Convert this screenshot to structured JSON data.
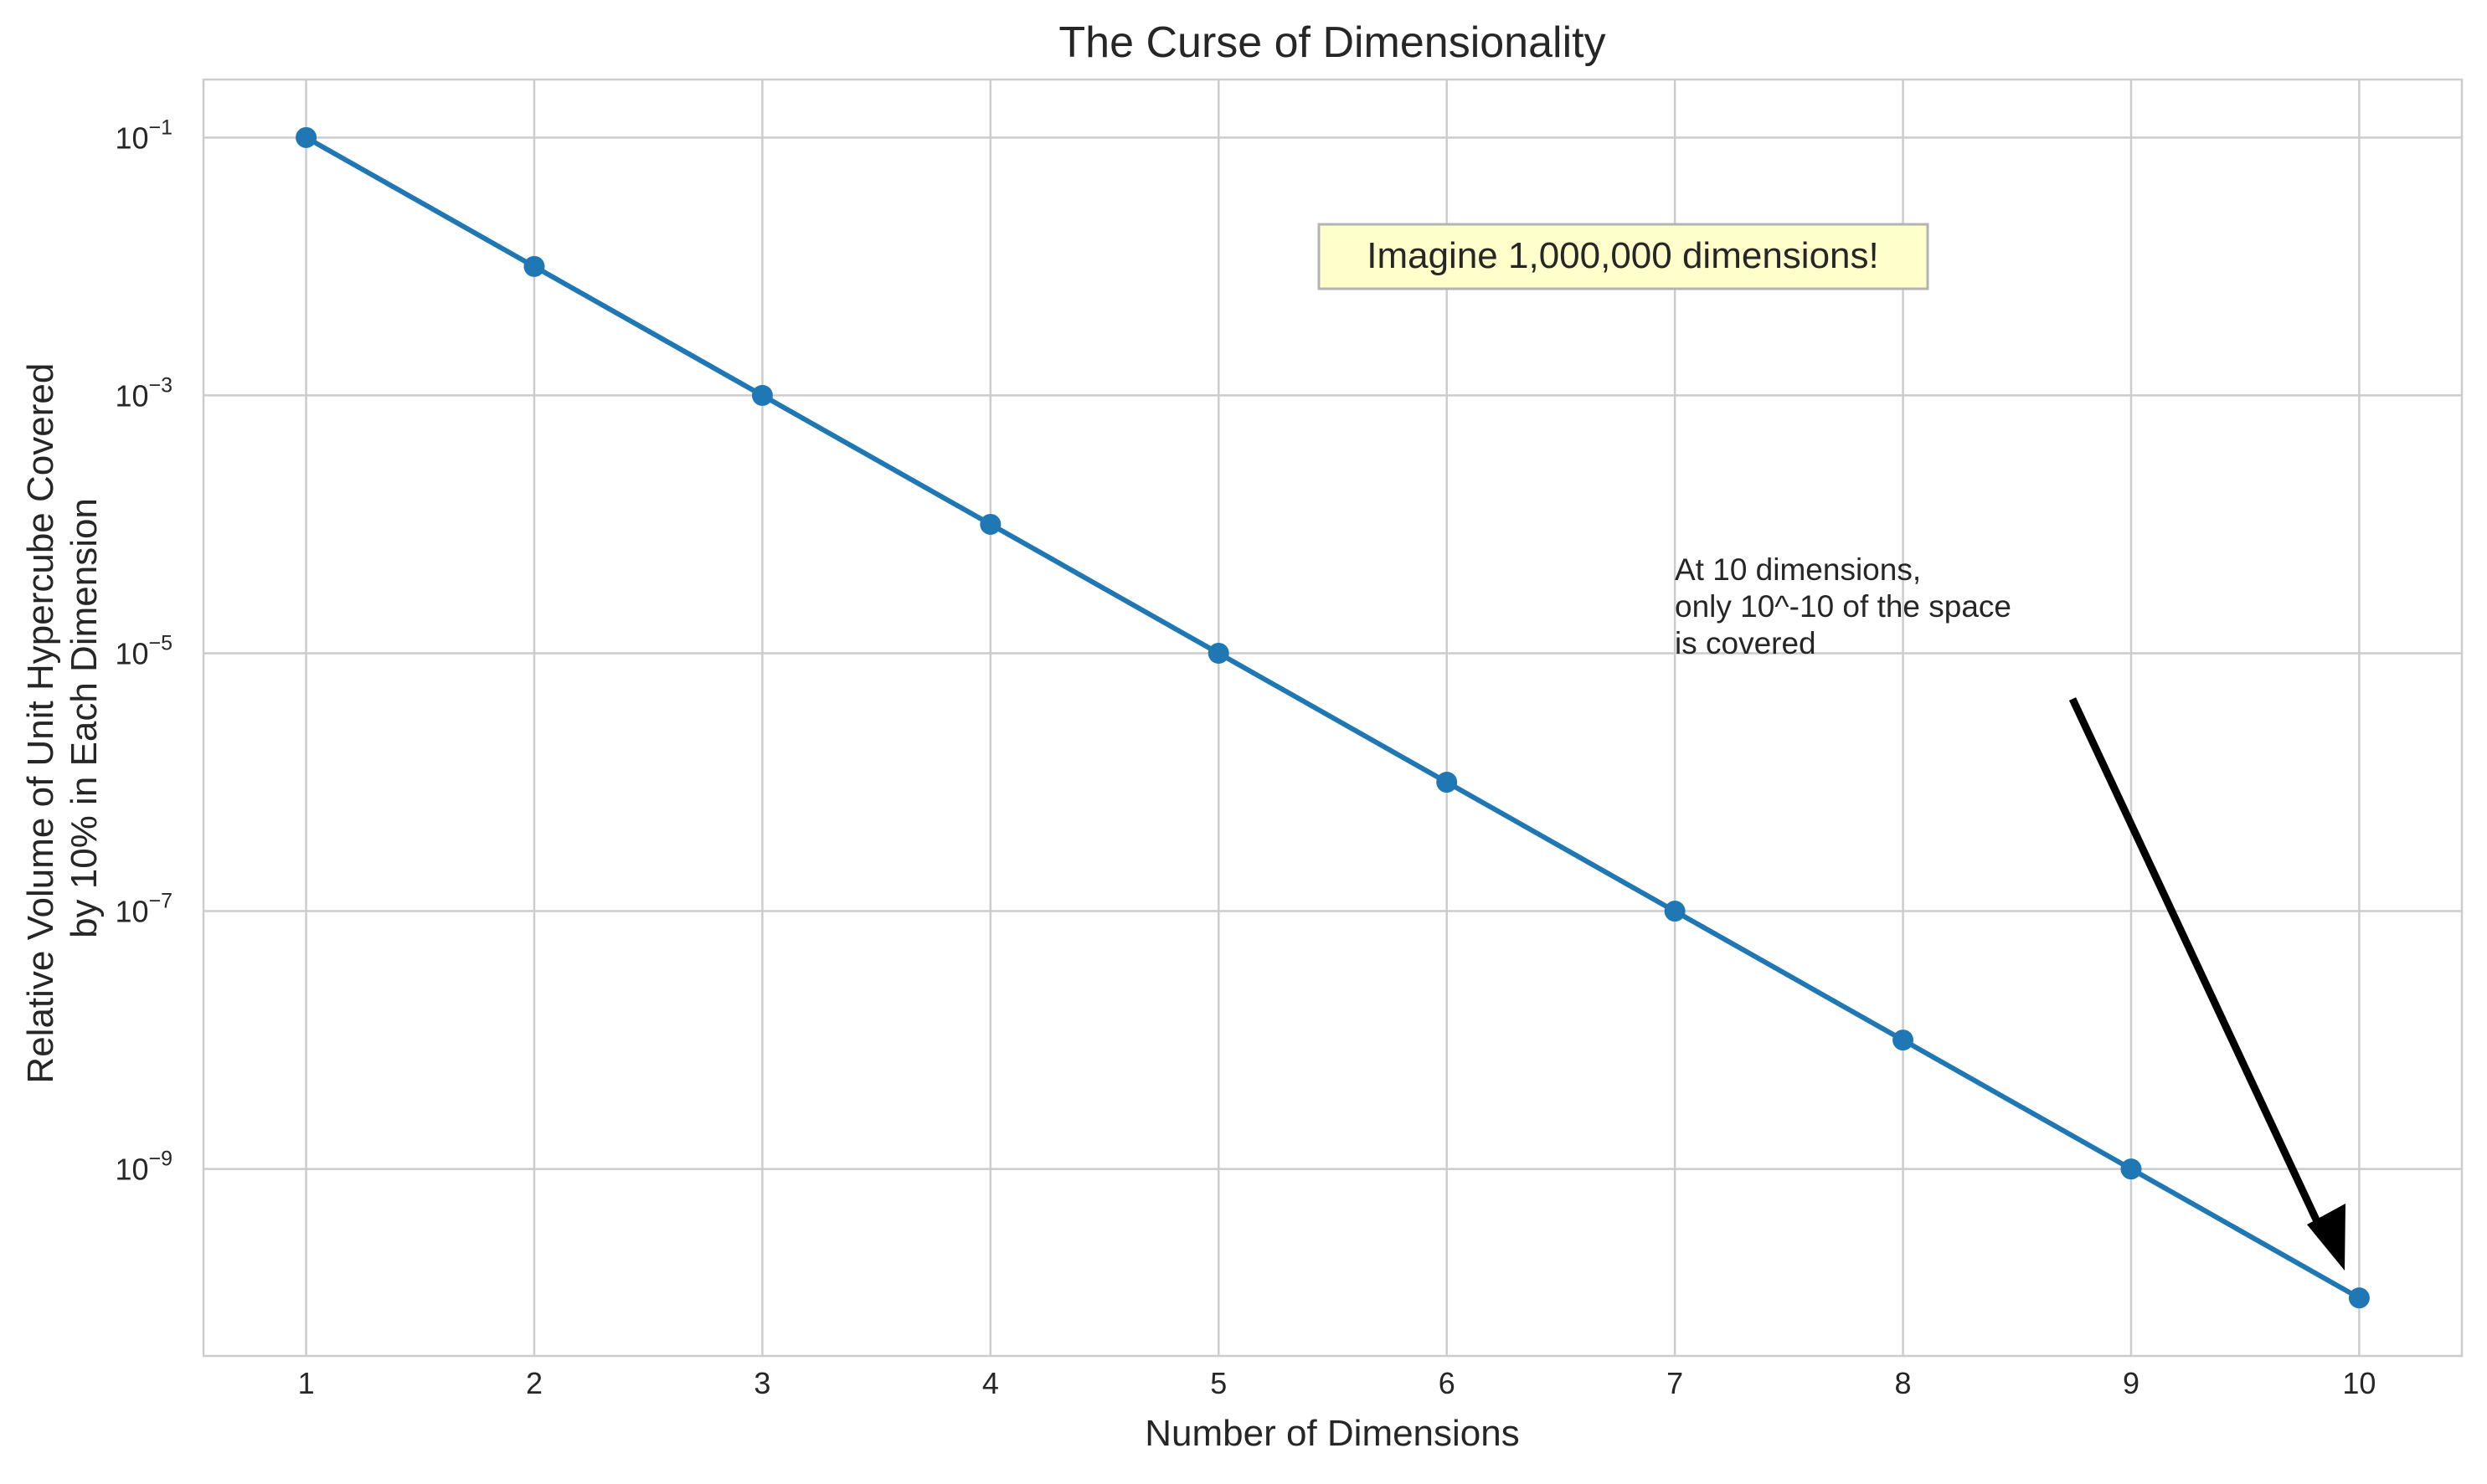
{
  "chart_data": {
    "type": "line",
    "title": "The Curse of Dimensionality",
    "xlabel": "Number of Dimensions",
    "ylabel_lines": [
      "Relative Volume of Unit Hypercube Covered",
      "by 10% in Each Dimension"
    ],
    "x": [
      1,
      2,
      3,
      4,
      5,
      6,
      7,
      8,
      9,
      10
    ],
    "y": [
      0.1,
      0.01,
      0.001,
      0.0001,
      1e-05,
      1e-06,
      1e-07,
      1e-08,
      1e-09,
      1e-10
    ],
    "x_ticks": [
      1,
      2,
      3,
      4,
      5,
      6,
      7,
      8,
      9,
      10
    ],
    "y_ticks": [
      {
        "base": "10",
        "exp": "−1",
        "value": 0.1
      },
      {
        "base": "10",
        "exp": "−3",
        "value": 0.001
      },
      {
        "base": "10",
        "exp": "−5",
        "value": 1e-05
      },
      {
        "base": "10",
        "exp": "−7",
        "value": 1e-07
      },
      {
        "base": "10",
        "exp": "−9",
        "value": 1e-09
      }
    ],
    "xlim": [
      0.55,
      10.45
    ],
    "ylim_log10": [
      -10.45,
      -0.55
    ],
    "yscale": "log",
    "grid": true,
    "series_color": "#1f77b4",
    "annotations": {
      "box_text": "Imagine 1,000,000 dimensions!",
      "box_color": "#ffffcc",
      "arrow_text_lines": [
        "At 10 dimensions,",
        "only 10^-10 of the space",
        "is covered"
      ],
      "arrow_target": {
        "x": 10,
        "y": 1e-10
      }
    }
  }
}
